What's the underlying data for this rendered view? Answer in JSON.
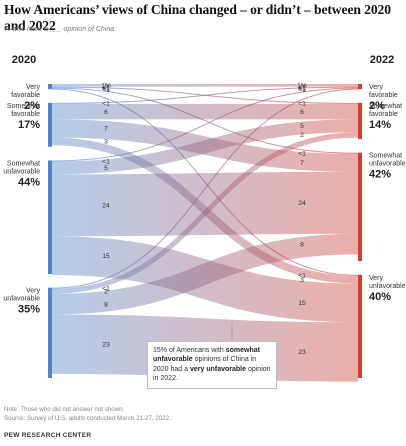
{
  "title": "How Americans’ views of China changed – or didn’t – between 2020 and 2022",
  "subtitle": "% who have a ___ opinion of China",
  "callout": {
    "p1": "15% of Americans with ",
    "b1": "somewhat unfavorable",
    "p2": " opinions of China in 2020 had a ",
    "b2": "very unfavorable",
    "p3": " opinion in 2022."
  },
  "note": "Note: Those who did not answer not shown.",
  "source": "Source: Survey of U.S. adults conducted March 21-27, 2022.",
  "brand": "PEW RESEARCH CENTER",
  "chart_data": {
    "type": "sankey",
    "left_year": "2020",
    "right_year": "2022",
    "left_nodes": [
      {
        "label": [
          "Very",
          "favorable"
        ],
        "value_label": "2%",
        "value": 2
      },
      {
        "label": [
          "Somewhat",
          "favorable"
        ],
        "value_label": "17%",
        "value": 17
      },
      {
        "label": [
          "Somewhat",
          "unfavorable"
        ],
        "value_label": "44%",
        "value": 44
      },
      {
        "label": [
          "Very",
          "unfavorable"
        ],
        "value_label": "35%",
        "value": 35
      }
    ],
    "right_nodes": [
      {
        "label": [
          "Very",
          "favorable"
        ],
        "value_label": "2%",
        "value": 2
      },
      {
        "label": [
          "Somewhat",
          "favorable"
        ],
        "value_label": "14%",
        "value": 14
      },
      {
        "label": [
          "Somewhat",
          "unfavorable"
        ],
        "value_label": "42%",
        "value": 42
      },
      {
        "label": [
          "Very",
          "unfavorable"
        ],
        "value_label": "40%",
        "value": 40
      }
    ],
    "flows": [
      {
        "from": 0,
        "to": 0,
        "label": "1%",
        "value": 1
      },
      {
        "from": 0,
        "to": 1,
        "label": "<1",
        "value": 0.4
      },
      {
        "from": 0,
        "to": 2,
        "label": "<1",
        "value": 0.4
      },
      {
        "from": 0,
        "to": 3,
        "label": "<1",
        "value": 0.4
      },
      {
        "from": 1,
        "to": 0,
        "label": "<1",
        "value": 0.4
      },
      {
        "from": 1,
        "to": 1,
        "label": "6",
        "value": 6
      },
      {
        "from": 1,
        "to": 2,
        "label": "7",
        "value": 7
      },
      {
        "from": 1,
        "to": 3,
        "label": "3",
        "value": 3
      },
      {
        "from": 2,
        "to": 0,
        "label": "<1",
        "value": 0.4
      },
      {
        "from": 2,
        "to": 1,
        "label": "5",
        "value": 5
      },
      {
        "from": 2,
        "to": 2,
        "label": "24",
        "value": 24
      },
      {
        "from": 2,
        "to": 3,
        "label": "15",
        "value": 15
      },
      {
        "from": 3,
        "to": 0,
        "label": "<1",
        "value": 0.4
      },
      {
        "from": 3,
        "to": 1,
        "label": "2",
        "value": 2
      },
      {
        "from": 3,
        "to": 2,
        "label": "8",
        "value": 8
      },
      {
        "from": 3,
        "to": 3,
        "label": "23",
        "value": 23
      }
    ],
    "colors": {
      "left": "#4d86cc",
      "right": "#d43c30"
    }
  }
}
